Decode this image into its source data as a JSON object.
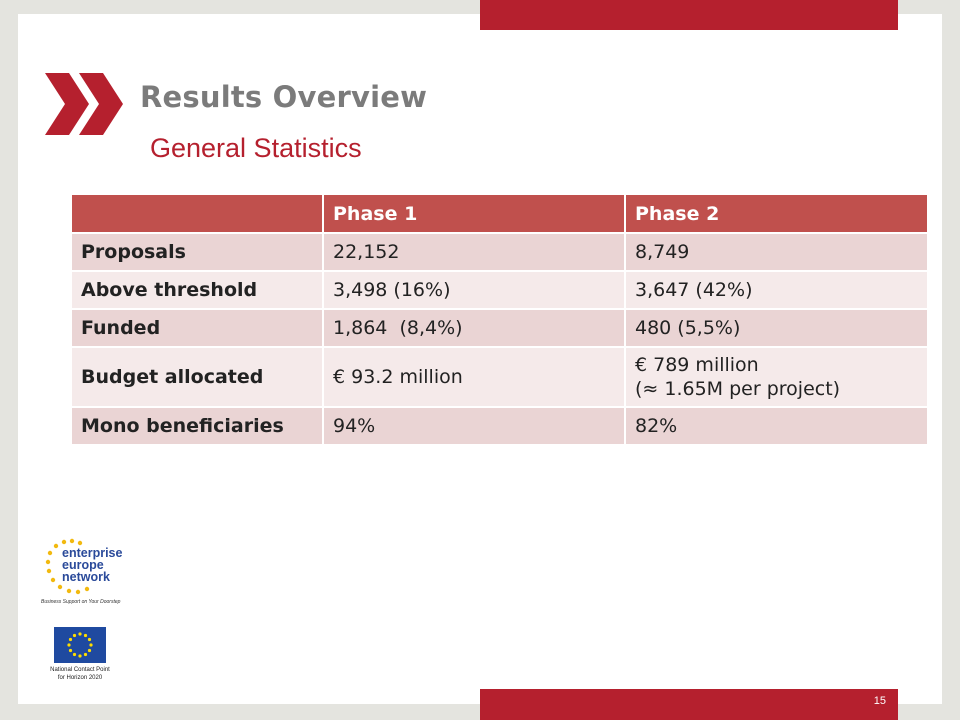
{
  "slide": {
    "title": "Results Overview",
    "subtitle": "General Statistics",
    "page_number": "15"
  },
  "table": {
    "headers": [
      "",
      "Phase 1",
      "Phase 2"
    ],
    "rows": [
      {
        "label": "Proposals",
        "phase1": "22,152",
        "phase2": "8,749"
      },
      {
        "label": "Above threshold",
        "phase1": "3,498 (16%)",
        "phase2": "3,647 (42%)"
      },
      {
        "label": "Funded",
        "phase1": "1,864  (8,4%)",
        "phase2": "480 (5,5%)"
      },
      {
        "label": "Budget allocated",
        "phase1": "€ 93.2 million",
        "phase2_line1": "€ 789 million",
        "phase2_line2": "(≈ 1.65M per project)"
      },
      {
        "label": "Mono beneficiaries",
        "phase1": "94%",
        "phase2": "82%"
      }
    ]
  },
  "logos": {
    "een_line1": "enterprise",
    "een_line2": "europe",
    "een_line3": "network",
    "een_tagline": "Business Support on Your Doorstep",
    "ncp_line1": "National Contact Point",
    "ncp_line2": "for Horizon 2020"
  },
  "colors": {
    "accent": "#b5202e",
    "header": "#c0504d",
    "row_dark": "#ead4d4",
    "row_light": "#f5eaea",
    "title_gray": "#7b7b7b"
  }
}
